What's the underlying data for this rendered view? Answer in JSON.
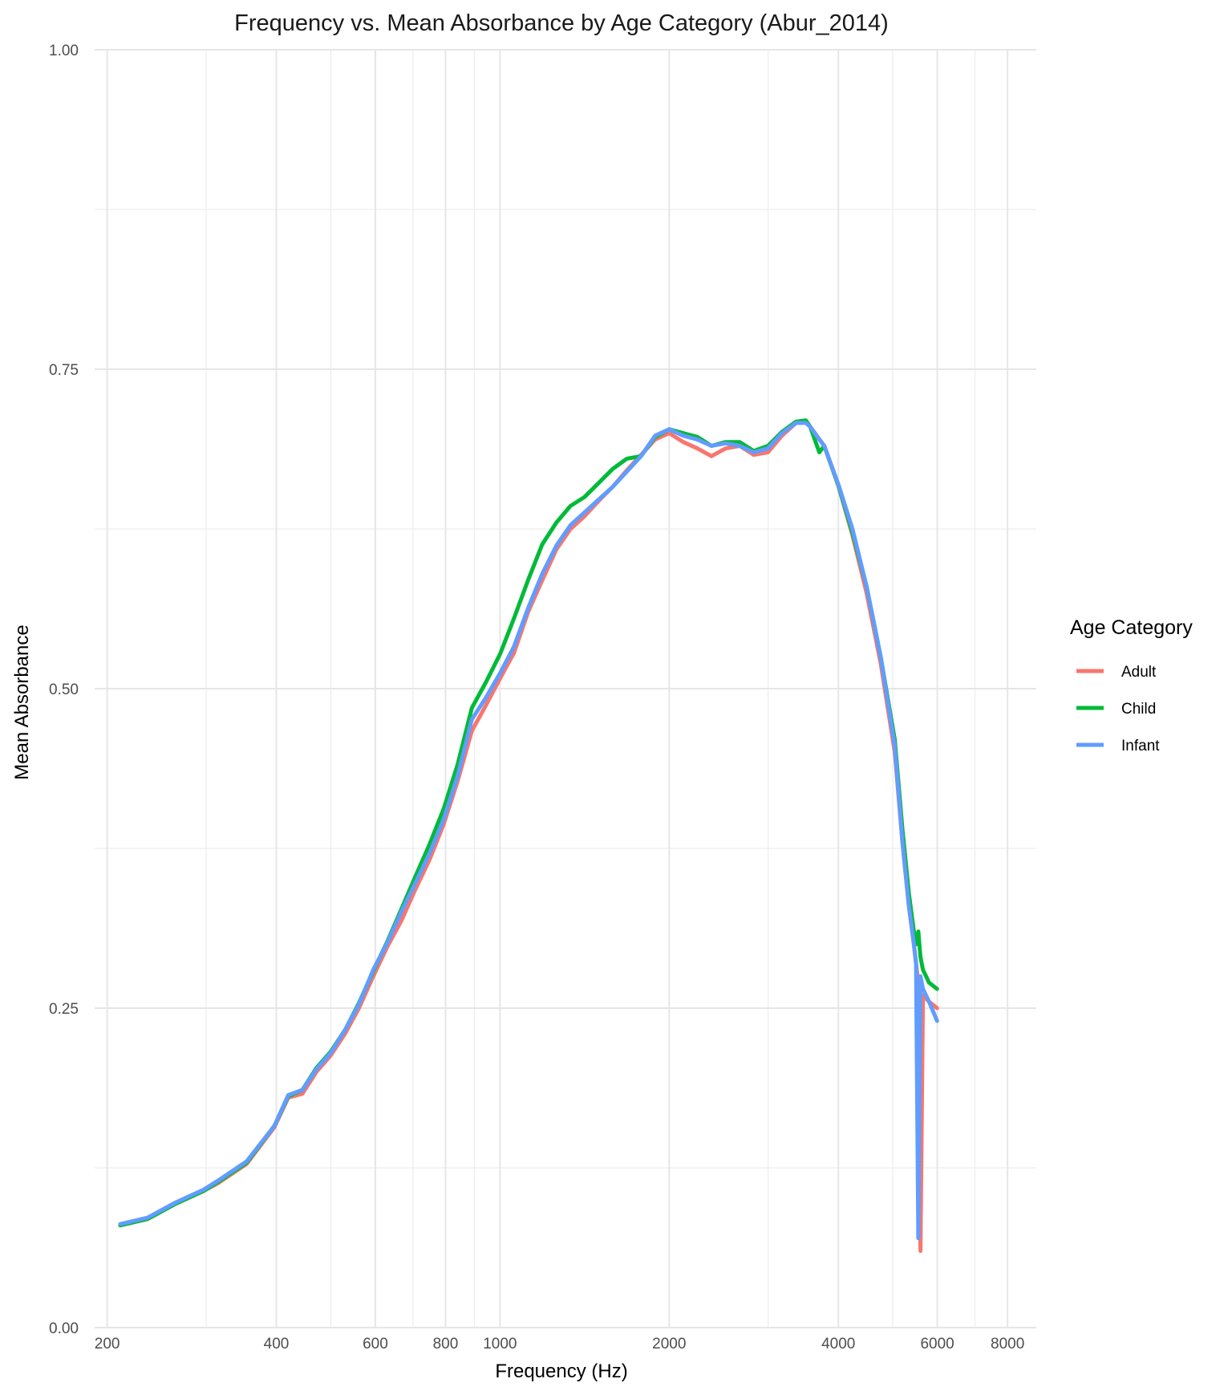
{
  "chart_data": {
    "type": "line",
    "title": "Frequency vs. Mean Absorbance by Age Category (Abur_2014)",
    "xlabel": "Frequency (Hz)",
    "ylabel": "Mean Absorbance",
    "x_scale": "log10",
    "xlim": [
      190,
      9000
    ],
    "ylim": [
      0,
      1
    ],
    "x_major_ticks": [
      200,
      400,
      600,
      800,
      1000,
      2000,
      4000,
      6000,
      8000
    ],
    "x_minor_ticks": [
      300,
      500,
      700,
      900,
      3000,
      5000,
      7000
    ],
    "x_tick_labels": [
      "200",
      "400",
      "600",
      "800",
      "1000",
      "2000",
      "4000",
      "6000",
      "8000"
    ],
    "y_major_ticks": [
      0,
      0.25,
      0.5,
      0.75,
      1.0
    ],
    "y_minor_ticks": [
      0.125,
      0.375,
      0.625,
      0.875
    ],
    "y_tick_labels": [
      "0.00",
      "0.25",
      "0.50",
      "0.75",
      "1.00"
    ],
    "grid": true,
    "legend": {
      "title": "Age Category",
      "position": "right"
    },
    "series": [
      {
        "name": "Adult",
        "color": "#F8766D",
        "x": [
          211,
          236,
          265,
          297,
          315,
          354,
          397,
          420,
          445,
          471,
          500,
          530,
          561,
          595,
          630,
          667,
          707,
          749,
          794,
          841,
          891,
          944,
          1000,
          1059,
          1122,
          1189,
          1260,
          1335,
          1414,
          1498,
          1587,
          1682,
          1782,
          1888,
          2000,
          2119,
          2245,
          2378,
          2520,
          2670,
          2828,
          2997,
          3175,
          3364,
          3500,
          3564,
          3776,
          4000,
          4238,
          4490,
          4757,
          5040,
          5200,
          5339,
          5450,
          5500,
          5550,
          5600,
          5657,
          5800,
          5993
        ],
        "y": [
          0.08,
          0.085,
          0.097,
          0.107,
          0.113,
          0.128,
          0.157,
          0.18,
          0.183,
          0.2,
          0.213,
          0.23,
          0.25,
          0.275,
          0.298,
          0.318,
          0.343,
          0.366,
          0.394,
          0.428,
          0.467,
          0.487,
          0.508,
          0.528,
          0.56,
          0.585,
          0.609,
          0.625,
          0.635,
          0.647,
          0.658,
          0.671,
          0.683,
          0.695,
          0.7,
          0.693,
          0.688,
          0.682,
          0.688,
          0.69,
          0.683,
          0.685,
          0.698,
          0.708,
          0.709,
          0.705,
          0.69,
          0.659,
          0.62,
          0.575,
          0.52,
          0.45,
          0.38,
          0.33,
          0.3,
          0.285,
          0.27,
          0.06,
          0.26,
          0.255,
          0.25
        ]
      },
      {
        "name": "Child",
        "color": "#00BA38",
        "x": [
          211,
          236,
          265,
          297,
          315,
          354,
          397,
          420,
          445,
          471,
          500,
          530,
          561,
          595,
          630,
          667,
          707,
          749,
          794,
          841,
          891,
          944,
          1000,
          1059,
          1122,
          1189,
          1260,
          1335,
          1414,
          1498,
          1587,
          1682,
          1782,
          1888,
          2000,
          2119,
          2245,
          2378,
          2520,
          2670,
          2828,
          2997,
          3175,
          3364,
          3500,
          3564,
          3700,
          3776,
          4000,
          4238,
          4490,
          4757,
          5040,
          5200,
          5339,
          5450,
          5500,
          5550,
          5600,
          5657,
          5800,
          5993
        ],
        "y": [
          0.08,
          0.085,
          0.097,
          0.107,
          0.114,
          0.129,
          0.158,
          0.181,
          0.186,
          0.203,
          0.216,
          0.233,
          0.254,
          0.279,
          0.302,
          0.327,
          0.353,
          0.378,
          0.406,
          0.441,
          0.485,
          0.505,
          0.527,
          0.555,
          0.585,
          0.613,
          0.63,
          0.643,
          0.65,
          0.661,
          0.672,
          0.68,
          0.682,
          0.697,
          0.703,
          0.7,
          0.697,
          0.69,
          0.693,
          0.693,
          0.686,
          0.69,
          0.701,
          0.709,
          0.71,
          0.705,
          0.685,
          0.69,
          0.659,
          0.622,
          0.58,
          0.525,
          0.46,
          0.39,
          0.34,
          0.31,
          0.3,
          0.31,
          0.29,
          0.28,
          0.27,
          0.265
        ]
      },
      {
        "name": "Infant",
        "color": "#619CFF",
        "x": [
          211,
          236,
          265,
          297,
          315,
          354,
          397,
          420,
          445,
          471,
          500,
          530,
          561,
          595,
          630,
          667,
          707,
          749,
          794,
          841,
          891,
          944,
          1000,
          1059,
          1122,
          1189,
          1260,
          1335,
          1414,
          1498,
          1587,
          1682,
          1782,
          1888,
          2000,
          2119,
          2245,
          2378,
          2520,
          2670,
          2828,
          2997,
          3175,
          3364,
          3500,
          3564,
          3700,
          3776,
          4000,
          4238,
          4490,
          4757,
          5040,
          5200,
          5339,
          5450,
          5500,
          5550,
          5600,
          5657,
          5800,
          5993
        ],
        "y": [
          0.081,
          0.086,
          0.098,
          0.108,
          0.115,
          0.13,
          0.158,
          0.182,
          0.186,
          0.202,
          0.215,
          0.233,
          0.253,
          0.28,
          0.301,
          0.325,
          0.348,
          0.371,
          0.398,
          0.432,
          0.476,
          0.493,
          0.512,
          0.533,
          0.563,
          0.59,
          0.612,
          0.628,
          0.638,
          0.648,
          0.658,
          0.67,
          0.682,
          0.698,
          0.703,
          0.698,
          0.695,
          0.69,
          0.692,
          0.69,
          0.685,
          0.688,
          0.7,
          0.708,
          0.708,
          0.705,
          0.695,
          0.69,
          0.66,
          0.625,
          0.58,
          0.525,
          0.455,
          0.38,
          0.33,
          0.3,
          0.285,
          0.07,
          0.275,
          0.265,
          0.255,
          0.24
        ]
      }
    ]
  }
}
